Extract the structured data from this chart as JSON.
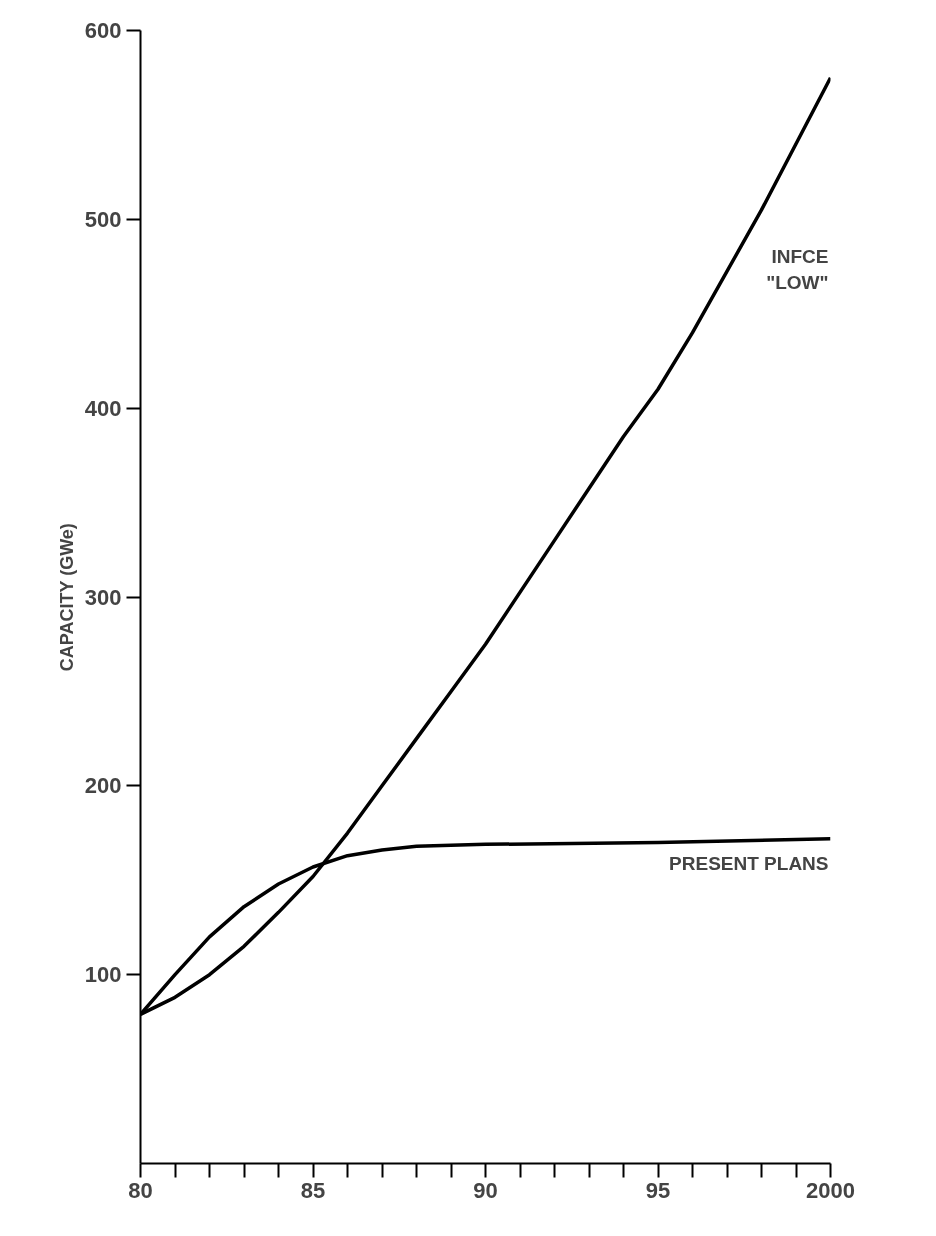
{
  "chart_data": {
    "type": "line",
    "ylabel": "CAPACITY (GWe)",
    "xlim": [
      1980,
      2000
    ],
    "ylim": [
      0,
      600
    ],
    "xticks": [
      {
        "value": 1980,
        "label": "80"
      },
      {
        "value": 1981,
        "label": null
      },
      {
        "value": 1982,
        "label": null
      },
      {
        "value": 1983,
        "label": null
      },
      {
        "value": 1984,
        "label": null
      },
      {
        "value": 1985,
        "label": "85"
      },
      {
        "value": 1986,
        "label": null
      },
      {
        "value": 1987,
        "label": null
      },
      {
        "value": 1988,
        "label": null
      },
      {
        "value": 1989,
        "label": null
      },
      {
        "value": 1990,
        "label": "90"
      },
      {
        "value": 1991,
        "label": null
      },
      {
        "value": 1992,
        "label": null
      },
      {
        "value": 1993,
        "label": null
      },
      {
        "value": 1994,
        "label": null
      },
      {
        "value": 1995,
        "label": "95"
      },
      {
        "value": 1996,
        "label": null
      },
      {
        "value": 1997,
        "label": null
      },
      {
        "value": 1998,
        "label": null
      },
      {
        "value": 1999,
        "label": null
      },
      {
        "value": 2000,
        "label": "2000"
      }
    ],
    "yticks": [
      100,
      200,
      300,
      400,
      500,
      600
    ],
    "grid": false,
    "legend": false,
    "marker": "none",
    "line_style": "solid",
    "series": [
      {
        "name": "INFCE\n\"LOW\"",
        "color": "#000000",
        "x": [
          1980,
          1981,
          1982,
          1983,
          1984,
          1985,
          1986,
          1987,
          1988,
          1989,
          1990,
          1992,
          1994,
          1995,
          1996,
          1998,
          2000
        ],
        "values": [
          79,
          88,
          100,
          115,
          133,
          152,
          175,
          200,
          225,
          250,
          275,
          330,
          385,
          410,
          440,
          505,
          575
        ]
      },
      {
        "name": "PRESENT PLANS",
        "color": "#000000",
        "x": [
          1980,
          1981,
          1982,
          1983,
          1984,
          1985,
          1986,
          1987,
          1988,
          1990,
          1995,
          2000
        ],
        "values": [
          79,
          100,
          120,
          136,
          148,
          157,
          163,
          166,
          168,
          169,
          170,
          172
        ]
      }
    ]
  }
}
